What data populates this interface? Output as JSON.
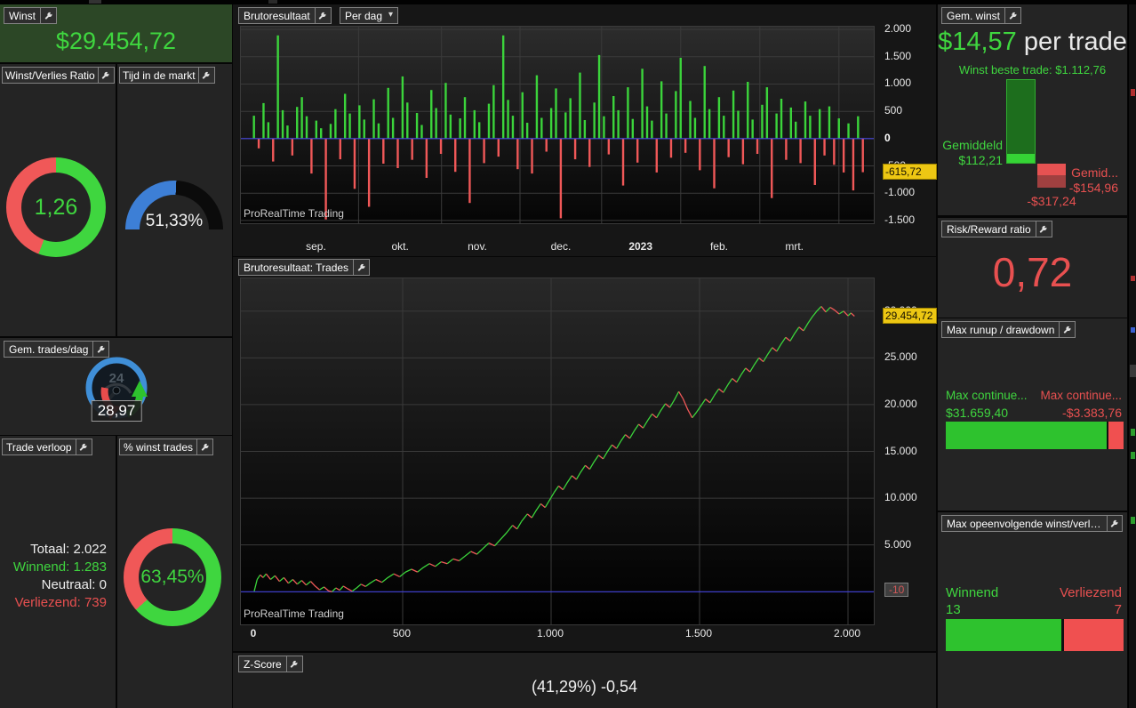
{
  "app": {
    "watermark": "ProRealTime Trading"
  },
  "colors": {
    "green_text": "#3fd63f",
    "green_bar": "#3bd43b",
    "green_dark": "#1d6e1d",
    "red_text": "#e85050",
    "red_bar": "#f05858",
    "red_dark": "#a04040",
    "blue_line": "#4444dd",
    "blue_gauge": "#3d7fd6",
    "yellow_badge": "#edc713"
  },
  "panels": {
    "winst": {
      "title": "Winst",
      "value": "$29.454,72"
    },
    "ratio": {
      "title": "Winst/Verlies Ratio",
      "value": "1,26",
      "green_pct": 55.7
    },
    "tijd": {
      "title": "Tijd in de markt",
      "value": "51,33%",
      "percent": 51.33
    },
    "trades_dag": {
      "title": "Gem. trades/dag",
      "value": "28,97",
      "icon_label": "24"
    },
    "trade_verloop": {
      "title": "Trade verloop",
      "rows": [
        {
          "label": "Totaal:",
          "value": "2.022"
        },
        {
          "label": "Winnend:",
          "value": "1.283"
        },
        {
          "label": "Neutraal:",
          "value": "0"
        },
        {
          "label": "Verliezend:",
          "value": "739"
        }
      ]
    },
    "pct_winst": {
      "title": "% winst trades",
      "value": "63,45%",
      "green_pct": 63.45
    },
    "daily_chart": {
      "title": "Brutoresultaat",
      "dropdown": "Per dag"
    },
    "trades_chart": {
      "title": "Brutoresultaat: Trades"
    },
    "z_score": {
      "title": "Z-Score",
      "value": "(41,29%) -0,54"
    },
    "gem_winst": {
      "title": "Gem. winst",
      "headline_value": "$14,57",
      "headline_suffix": " per trade",
      "best_trade_label": "Winst beste trade: $1.112,76",
      "avg_win_label": "Gemiddeld",
      "avg_win_value": "$112,21",
      "avg_loss_label": "Gemid...",
      "avg_loss_value": "-$154,96",
      "worst_value": "-$317,24",
      "best_trade": 1112.76,
      "avg_win": 112.21,
      "avg_loss": 154.96,
      "worst_trade": 317.24
    },
    "risk_reward": {
      "title": "Risk/Reward ratio",
      "value": "0,72"
    },
    "max_runup": {
      "title": "Max runup / drawdown",
      "runup_label": "Max continue...",
      "runup_value": "$31.659,40",
      "drawdown_label": "Max continue...",
      "drawdown_value": "-$3.383,76",
      "runup": 31659.4,
      "drawdown": 3383.76
    },
    "max_opeen": {
      "title": "Max opeenvolgende winst/verlies ...",
      "win_label": "Winnend",
      "win_value": "13",
      "loss_label": "Verliezend",
      "loss_value": "7",
      "win": 13,
      "loss": 7
    }
  },
  "chart_data": [
    {
      "type": "bar",
      "title": "Brutoresultaat (Per dag)",
      "ylabel": "",
      "ylim": [
        -1550,
        2050
      ],
      "grid": true,
      "yticks": [
        {
          "v": 2000,
          "label": "2.000"
        },
        {
          "v": 1500,
          "label": "1.500"
        },
        {
          "v": 1000,
          "label": "1.000"
        },
        {
          "v": 500,
          "label": "500"
        },
        {
          "v": 0,
          "label": "0"
        },
        {
          "v": -500,
          "label": "-500"
        },
        {
          "v": -1000,
          "label": "-1.000"
        },
        {
          "v": -1500,
          "label": "-1.500"
        }
      ],
      "x_categories": [
        {
          "label": "sep.",
          "pos": 0.12
        },
        {
          "label": "okt.",
          "pos": 0.253
        },
        {
          "label": "nov.",
          "pos": 0.375
        },
        {
          "label": "dec.",
          "pos": 0.507
        },
        {
          "label": "2023",
          "pos": 0.633,
          "bold": true
        },
        {
          "label": "feb.",
          "pos": 0.757
        },
        {
          "label": "mrt.",
          "pos": 0.876
        }
      ],
      "grid_pos": [
        0.186,
        0.317,
        0.441,
        0.57,
        0.695,
        0.82,
        0.945
      ],
      "last_value": -615.72,
      "last_label": "-615,72",
      "values": [
        420,
        -180,
        650,
        300,
        -420,
        1890,
        520,
        240,
        -310,
        580,
        760,
        410,
        -640,
        330,
        190,
        -1480,
        270,
        540,
        -380,
        820,
        460,
        -920,
        610,
        350,
        -1250,
        720,
        280,
        -460,
        930,
        380,
        -540,
        1140,
        660,
        -390,
        470,
        250,
        -720,
        890,
        560,
        -280,
        1020,
        440,
        -610,
        370,
        760,
        -1180,
        520,
        300,
        -450,
        640,
        980,
        -330,
        1890,
        710,
        420,
        -560,
        850,
        290,
        -640,
        1160,
        380,
        -240,
        560,
        920,
        -1460,
        480,
        740,
        -380,
        1210,
        340,
        -520,
        660,
        1530,
        410,
        -290,
        780,
        520,
        -860,
        940,
        360,
        -440,
        1280,
        590,
        330,
        -620,
        1050,
        460,
        -350,
        870,
        1480,
        -260,
        690,
        380,
        -580,
        1330,
        540,
        -910,
        760,
        420,
        -340,
        880,
        510,
        -470,
        1040,
        350,
        -280,
        620,
        940,
        -1090,
        460,
        730,
        -390,
        570,
        310,
        -450,
        680,
        420,
        -850,
        540,
        -310,
        590,
        -480,
        370,
        -620,
        280,
        -950,
        410,
        -615.72
      ]
    },
    {
      "type": "line",
      "title": "Brutoresultaat: Trades",
      "xlim": [
        0,
        2086
      ],
      "ylim": [
        -3500,
        33500
      ],
      "grid": true,
      "baseline_value": -10,
      "baseline_label": "-10",
      "last_value": 29454.72,
      "last_label": "29.454,72",
      "yticks": [
        {
          "v": 30000,
          "label": "30.000"
        },
        {
          "v": 25000,
          "label": "25.000"
        },
        {
          "v": 20000,
          "label": "20.000"
        },
        {
          "v": 15000,
          "label": "15.000"
        },
        {
          "v": 10000,
          "label": "10.000"
        },
        {
          "v": 5000,
          "label": "5.000"
        }
      ],
      "xticks": [
        {
          "v": 0,
          "label": "0",
          "bold": true
        },
        {
          "v": 500,
          "label": "500"
        },
        {
          "v": 1000,
          "label": "1.000"
        },
        {
          "v": 1500,
          "label": "1.500"
        },
        {
          "v": 2000,
          "label": "2.000"
        }
      ],
      "points": [
        [
          0,
          50
        ],
        [
          10,
          1300
        ],
        [
          20,
          1800
        ],
        [
          30,
          1500
        ],
        [
          40,
          1900
        ],
        [
          55,
          1300
        ],
        [
          70,
          1700
        ],
        [
          85,
          1100
        ],
        [
          100,
          1500
        ],
        [
          115,
          900
        ],
        [
          130,
          1300
        ],
        [
          145,
          800
        ],
        [
          160,
          1200
        ],
        [
          175,
          700
        ],
        [
          190,
          1100
        ],
        [
          205,
          600
        ],
        [
          220,
          200
        ],
        [
          235,
          500
        ],
        [
          250,
          100
        ],
        [
          262,
          -10
        ],
        [
          275,
          400
        ],
        [
          288,
          150
        ],
        [
          300,
          600
        ],
        [
          315,
          300
        ],
        [
          330,
          50
        ],
        [
          345,
          400
        ],
        [
          360,
          800
        ],
        [
          375,
          550
        ],
        [
          390,
          900
        ],
        [
          410,
          1300
        ],
        [
          430,
          1000
        ],
        [
          450,
          1500
        ],
        [
          470,
          1900
        ],
        [
          490,
          1600
        ],
        [
          510,
          2100
        ],
        [
          530,
          2400
        ],
        [
          550,
          2100
        ],
        [
          570,
          2600
        ],
        [
          590,
          3000
        ],
        [
          610,
          2700
        ],
        [
          630,
          3200
        ],
        [
          650,
          3000
        ],
        [
          670,
          3500
        ],
        [
          690,
          3300
        ],
        [
          710,
          3800
        ],
        [
          730,
          4300
        ],
        [
          750,
          4000
        ],
        [
          770,
          4600
        ],
        [
          790,
          5200
        ],
        [
          810,
          4900
        ],
        [
          830,
          5600
        ],
        [
          850,
          6300
        ],
        [
          870,
          7100
        ],
        [
          885,
          6700
        ],
        [
          900,
          7500
        ],
        [
          920,
          8300
        ],
        [
          935,
          7900
        ],
        [
          950,
          8700
        ],
        [
          965,
          9400
        ],
        [
          980,
          9000
        ],
        [
          995,
          9800
        ],
        [
          1010,
          10600
        ],
        [
          1025,
          11300
        ],
        [
          1040,
          10900
        ],
        [
          1055,
          11700
        ],
        [
          1070,
          12400
        ],
        [
          1085,
          12000
        ],
        [
          1100,
          12800
        ],
        [
          1115,
          13500
        ],
        [
          1130,
          13100
        ],
        [
          1145,
          13900
        ],
        [
          1160,
          14600
        ],
        [
          1175,
          14200
        ],
        [
          1190,
          15000
        ],
        [
          1205,
          15700
        ],
        [
          1220,
          15300
        ],
        [
          1235,
          16100
        ],
        [
          1250,
          16800
        ],
        [
          1265,
          16400
        ],
        [
          1280,
          17200
        ],
        [
          1295,
          17900
        ],
        [
          1310,
          17500
        ],
        [
          1325,
          18300
        ],
        [
          1340,
          19000
        ],
        [
          1355,
          18600
        ],
        [
          1370,
          19400
        ],
        [
          1385,
          20100
        ],
        [
          1400,
          19700
        ],
        [
          1415,
          20500
        ],
        [
          1430,
          21400
        ],
        [
          1445,
          20600
        ],
        [
          1460,
          19500
        ],
        [
          1475,
          18600
        ],
        [
          1490,
          19200
        ],
        [
          1505,
          19900
        ],
        [
          1520,
          20600
        ],
        [
          1535,
          20200
        ],
        [
          1550,
          21000
        ],
        [
          1565,
          21700
        ],
        [
          1580,
          21300
        ],
        [
          1595,
          22100
        ],
        [
          1610,
          22800
        ],
        [
          1625,
          22400
        ],
        [
          1640,
          23200
        ],
        [
          1655,
          23900
        ],
        [
          1670,
          23500
        ],
        [
          1685,
          24300
        ],
        [
          1700,
          25000
        ],
        [
          1715,
          24600
        ],
        [
          1730,
          25400
        ],
        [
          1745,
          26100
        ],
        [
          1760,
          25700
        ],
        [
          1775,
          26500
        ],
        [
          1790,
          27200
        ],
        [
          1805,
          26800
        ],
        [
          1820,
          27600
        ],
        [
          1835,
          28300
        ],
        [
          1850,
          27900
        ],
        [
          1865,
          28700
        ],
        [
          1880,
          29400
        ],
        [
          1895,
          30000
        ],
        [
          1910,
          30500
        ],
        [
          1925,
          29900
        ],
        [
          1940,
          30400
        ],
        [
          1955,
          30100
        ],
        [
          1970,
          29700
        ],
        [
          1985,
          30000
        ],
        [
          2000,
          29500
        ],
        [
          2010,
          29800
        ],
        [
          2022,
          29454.72
        ]
      ]
    }
  ]
}
